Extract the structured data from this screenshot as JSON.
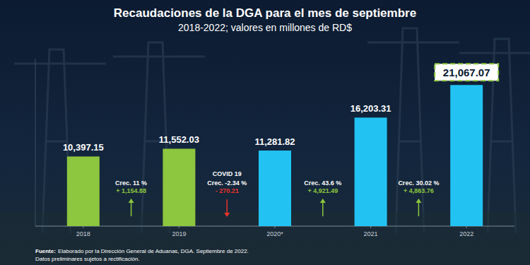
{
  "chart_data": {
    "type": "bar",
    "title": "Recaudaciones de la DGA para el mes de septiembre",
    "subtitle": "2018-2022; valores en millones de RD$",
    "categories": [
      "2018",
      "2019",
      "2020*",
      "2021",
      "2022"
    ],
    "values": [
      10397.15,
      11552.03,
      11281.82,
      16203.31,
      21067.07
    ],
    "value_labels": [
      "10,397.15",
      "11,552.03",
      "11,281.82",
      "16,203.31",
      "21,067.07"
    ],
    "colors": [
      "#8dc63f",
      "#8dc63f",
      "#22c3f3",
      "#22c3f3",
      "#22c3f3"
    ],
    "ylim": [
      0,
      25000
    ],
    "grid": false,
    "data_labels": true,
    "tick_labels": "x",
    "annotations": [
      {
        "text": "Crec. 11 %",
        "change": "+ 1,154.88"
      },
      {
        "note": "COVID 19",
        "text": "Crec. -2.34 %",
        "change": "- 270.21"
      },
      {
        "text": "Crec. 43.6 %",
        "change": "+ 4,921.49"
      },
      {
        "text": "Crec. 30.02 %",
        "change": "+ 4,863.76"
      }
    ],
    "source_label": "Fuente:",
    "source": "Elaborado por la Dirección General de Aduanas, DGA. Septiembre de 2022.",
    "note": "Datos preliminares sujetos a rectificación."
  }
}
